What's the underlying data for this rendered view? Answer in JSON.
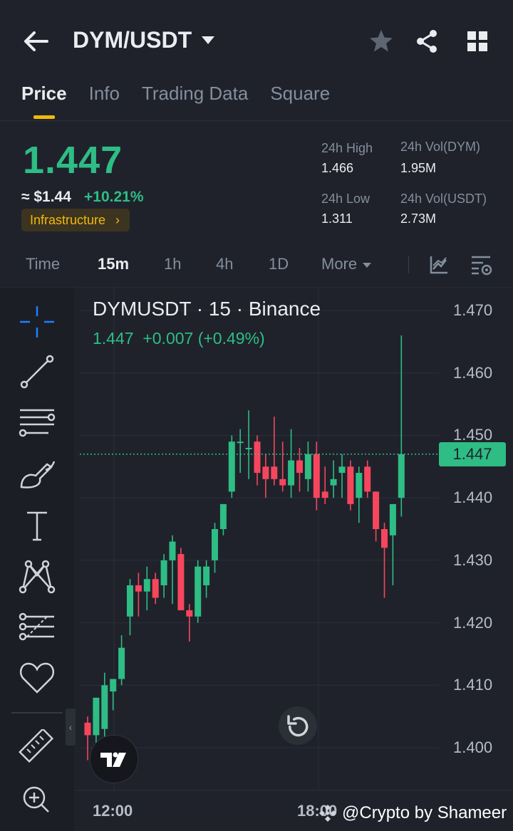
{
  "header": {
    "pair": "DYM/USDT",
    "icons": [
      "back-arrow-icon",
      "star-icon",
      "share-icon",
      "grid-icon"
    ]
  },
  "tabs": [
    {
      "label": "Price",
      "active": true
    },
    {
      "label": "Info"
    },
    {
      "label": "Trading Data"
    },
    {
      "label": "Square"
    }
  ],
  "ticker": {
    "last_price": "1.447",
    "fiat_price": "≈ $1.44",
    "change_pct": "+10.21%",
    "tag": "Infrastructure",
    "tag_arrow": "›",
    "high_label": "24h High",
    "high": "1.466",
    "low_label": "24h Low",
    "low": "1.311",
    "vol_dym_label": "24h Vol(DYM)",
    "vol_dym": "1.95M",
    "vol_usdt_label": "24h Vol(USDT)",
    "vol_usdt": "2.73M"
  },
  "intervals": [
    {
      "label": "Time"
    },
    {
      "label": "15m",
      "active": true
    },
    {
      "label": "1h"
    },
    {
      "label": "4h"
    },
    {
      "label": "1D"
    },
    {
      "label": "More"
    }
  ],
  "toolbar_icons": [
    "crosshair-icon",
    "trend-line-icon",
    "horizontal-lines-icon",
    "brush-icon",
    "text-icon",
    "pattern-icon",
    "prediction-icon",
    "heart-icon",
    "ruler-icon",
    "zoom-in-icon"
  ],
  "chart_legend": {
    "title": "DYMUSDT · 15 · Binance",
    "values": "1.447  +0.007 (+0.49%)"
  },
  "chart_data": {
    "type": "candlestick",
    "ylim": [
      1.396,
      1.474
    ],
    "yticks": [
      "1.470",
      "1.460",
      "1.450",
      "1.440",
      "1.430",
      "1.420",
      "1.410",
      "1.400"
    ],
    "xticks": [
      "12:00",
      "18:00"
    ],
    "last_price_label": "1.447",
    "up_color": "#2ebd85",
    "down_color": "#f6465d",
    "candles": [
      {
        "o": 1.404,
        "h": 1.405,
        "l": 1.398,
        "c": 1.402
      },
      {
        "o": 1.402,
        "h": 1.408,
        "l": 1.4,
        "c": 1.408
      },
      {
        "o": 1.403,
        "h": 1.412,
        "l": 1.398,
        "c": 1.41
      },
      {
        "o": 1.409,
        "h": 1.411,
        "l": 1.406,
        "c": 1.411
      },
      {
        "o": 1.411,
        "h": 1.418,
        "l": 1.41,
        "c": 1.416
      },
      {
        "o": 1.421,
        "h": 1.427,
        "l": 1.418,
        "c": 1.426
      },
      {
        "o": 1.426,
        "h": 1.428,
        "l": 1.421,
        "c": 1.425
      },
      {
        "o": 1.425,
        "h": 1.429,
        "l": 1.422,
        "c": 1.427
      },
      {
        "o": 1.427,
        "h": 1.428,
        "l": 1.423,
        "c": 1.424
      },
      {
        "o": 1.426,
        "h": 1.431,
        "l": 1.424,
        "c": 1.43
      },
      {
        "o": 1.43,
        "h": 1.434,
        "l": 1.423,
        "c": 1.433
      },
      {
        "o": 1.431,
        "h": 1.432,
        "l": 1.422,
        "c": 1.422
      },
      {
        "o": 1.422,
        "h": 1.423,
        "l": 1.417,
        "c": 1.421
      },
      {
        "o": 1.421,
        "h": 1.43,
        "l": 1.42,
        "c": 1.429
      },
      {
        "o": 1.426,
        "h": 1.43,
        "l": 1.424,
        "c": 1.429
      },
      {
        "o": 1.43,
        "h": 1.436,
        "l": 1.428,
        "c": 1.435
      },
      {
        "o": 1.435,
        "h": 1.439,
        "l": 1.434,
        "c": 1.439
      },
      {
        "o": 1.441,
        "h": 1.45,
        "l": 1.44,
        "c": 1.449
      },
      {
        "o": 1.449,
        "h": 1.451,
        "l": 1.444,
        "c": 1.449
      },
      {
        "o": 1.448,
        "h": 1.454,
        "l": 1.443,
        "c": 1.448
      },
      {
        "o": 1.449,
        "h": 1.45,
        "l": 1.442,
        "c": 1.444
      },
      {
        "o": 1.445,
        "h": 1.447,
        "l": 1.44,
        "c": 1.443
      },
      {
        "o": 1.445,
        "h": 1.453,
        "l": 1.442,
        "c": 1.443
      },
      {
        "o": 1.443,
        "h": 1.449,
        "l": 1.441,
        "c": 1.442
      },
      {
        "o": 1.442,
        "h": 1.451,
        "l": 1.44,
        "c": 1.446
      },
      {
        "o": 1.446,
        "h": 1.448,
        "l": 1.441,
        "c": 1.444
      },
      {
        "o": 1.443,
        "h": 1.449,
        "l": 1.441,
        "c": 1.447
      },
      {
        "o": 1.447,
        "h": 1.449,
        "l": 1.438,
        "c": 1.44
      },
      {
        "o": 1.441,
        "h": 1.445,
        "l": 1.439,
        "c": 1.44
      },
      {
        "o": 1.442,
        "h": 1.446,
        "l": 1.44,
        "c": 1.443
      },
      {
        "o": 1.444,
        "h": 1.447,
        "l": 1.44,
        "c": 1.445
      },
      {
        "o": 1.445,
        "h": 1.446,
        "l": 1.438,
        "c": 1.439
      },
      {
        "o": 1.44,
        "h": 1.445,
        "l": 1.436,
        "c": 1.444
      },
      {
        "o": 1.445,
        "h": 1.446,
        "l": 1.44,
        "c": 1.441
      },
      {
        "o": 1.441,
        "h": 1.441,
        "l": 1.433,
        "c": 1.435
      },
      {
        "o": 1.435,
        "h": 1.436,
        "l": 1.424,
        "c": 1.432
      },
      {
        "o": 1.434,
        "h": 1.439,
        "l": 1.426,
        "c": 1.439
      },
      {
        "o": 1.44,
        "h": 1.466,
        "l": 1.437,
        "c": 1.447
      }
    ]
  },
  "watermark": "@Crypto by Shameer"
}
